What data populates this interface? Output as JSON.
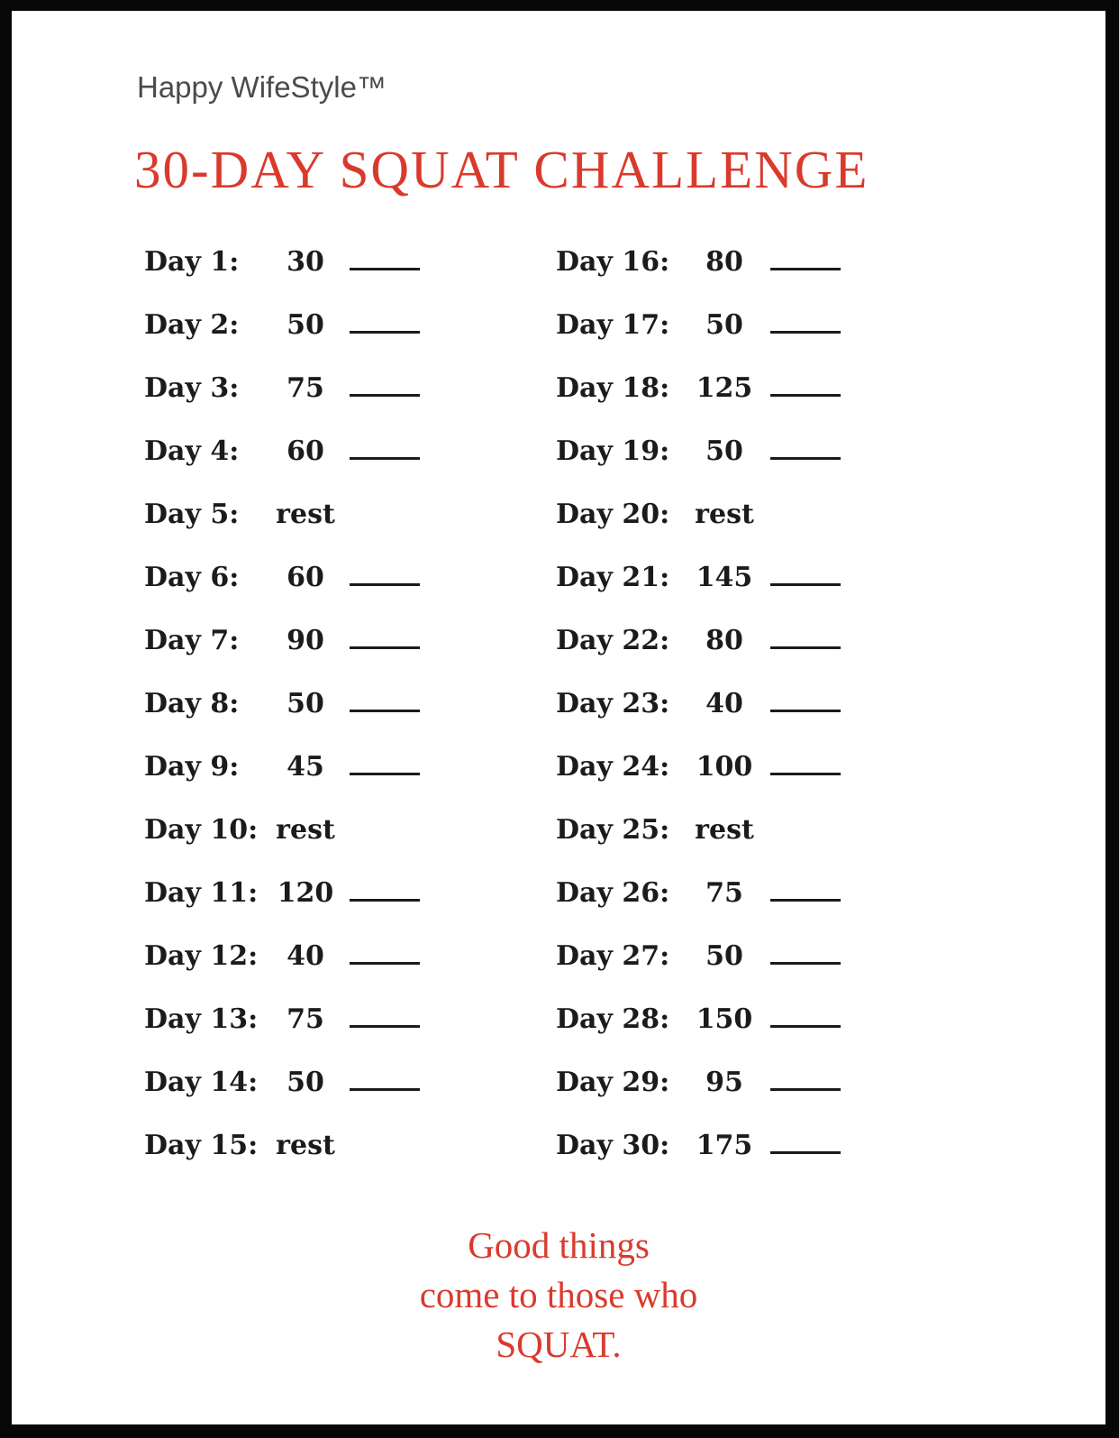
{
  "page": {
    "brand": "Happy WifeStyle™",
    "title": "30-DAY SQUAT CHALLENGE",
    "footer_lines": [
      "Good things",
      "come to those who",
      "SQUAT."
    ],
    "colors": {
      "accent_red": "#da3a2c",
      "brand_gray": "#4b4b4d",
      "text_black": "#1b1b1b",
      "frame_black": "#070707",
      "page_white": "#ffffff"
    }
  },
  "challenge": {
    "left_column": [
      {
        "label": "Day 1:",
        "value": "30",
        "rest": false
      },
      {
        "label": "Day 2:",
        "value": "50",
        "rest": false
      },
      {
        "label": "Day 3:",
        "value": "75",
        "rest": false
      },
      {
        "label": "Day 4:",
        "value": "60",
        "rest": false
      },
      {
        "label": "Day 5:",
        "value": "rest",
        "rest": true
      },
      {
        "label": "Day 6:",
        "value": "60",
        "rest": false
      },
      {
        "label": "Day 7:",
        "value": "90",
        "rest": false
      },
      {
        "label": "Day 8:",
        "value": "50",
        "rest": false
      },
      {
        "label": "Day 9:",
        "value": "45",
        "rest": false
      },
      {
        "label": "Day 10:",
        "value": "rest",
        "rest": true
      },
      {
        "label": "Day 11:",
        "value": "120",
        "rest": false
      },
      {
        "label": "Day 12:",
        "value": "40",
        "rest": false
      },
      {
        "label": "Day 13:",
        "value": "75",
        "rest": false
      },
      {
        "label": "Day 14:",
        "value": "50",
        "rest": false
      },
      {
        "label": "Day 15:",
        "value": "rest",
        "rest": true
      }
    ],
    "right_column": [
      {
        "label": "Day 16:",
        "value": "80",
        "rest": false
      },
      {
        "label": "Day 17:",
        "value": "50",
        "rest": false
      },
      {
        "label": "Day 18:",
        "value": "125",
        "rest": false
      },
      {
        "label": "Day 19:",
        "value": "50",
        "rest": false
      },
      {
        "label": "Day 20:",
        "value": "rest",
        "rest": true
      },
      {
        "label": "Day 21:",
        "value": "145",
        "rest": false
      },
      {
        "label": "Day 22:",
        "value": "80",
        "rest": false
      },
      {
        "label": "Day 23:",
        "value": "40",
        "rest": false
      },
      {
        "label": "Day 24:",
        "value": "100",
        "rest": false
      },
      {
        "label": "Day 25:",
        "value": "rest",
        "rest": true
      },
      {
        "label": "Day 26:",
        "value": "75",
        "rest": false
      },
      {
        "label": "Day 27:",
        "value": "50",
        "rest": false
      },
      {
        "label": "Day 28:",
        "value": "150",
        "rest": false
      },
      {
        "label": "Day 29:",
        "value": "95",
        "rest": false
      },
      {
        "label": "Day 30:",
        "value": "175",
        "rest": false
      }
    ]
  }
}
